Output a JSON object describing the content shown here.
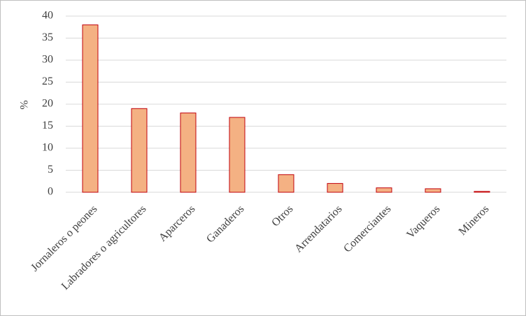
{
  "chart_data": {
    "type": "bar",
    "ylabel": "%",
    "categories": [
      "Jornaleros o peones",
      "Labradores o agricultores",
      "Aparceros",
      "Ganaderos",
      "Otros",
      "Arrendatarios",
      "Comerciantes",
      "Vaqueros",
      "Mineros"
    ],
    "values": [
      38,
      19,
      18,
      17,
      4,
      2,
      1,
      0.8,
      0.2
    ],
    "color": "#f4b183",
    "edgecolor": "#c0000a",
    "ylim": [
      0,
      40
    ],
    "yticks": [
      0,
      5,
      10,
      15,
      20,
      25,
      30,
      35,
      40
    ],
    "grid": true
  }
}
